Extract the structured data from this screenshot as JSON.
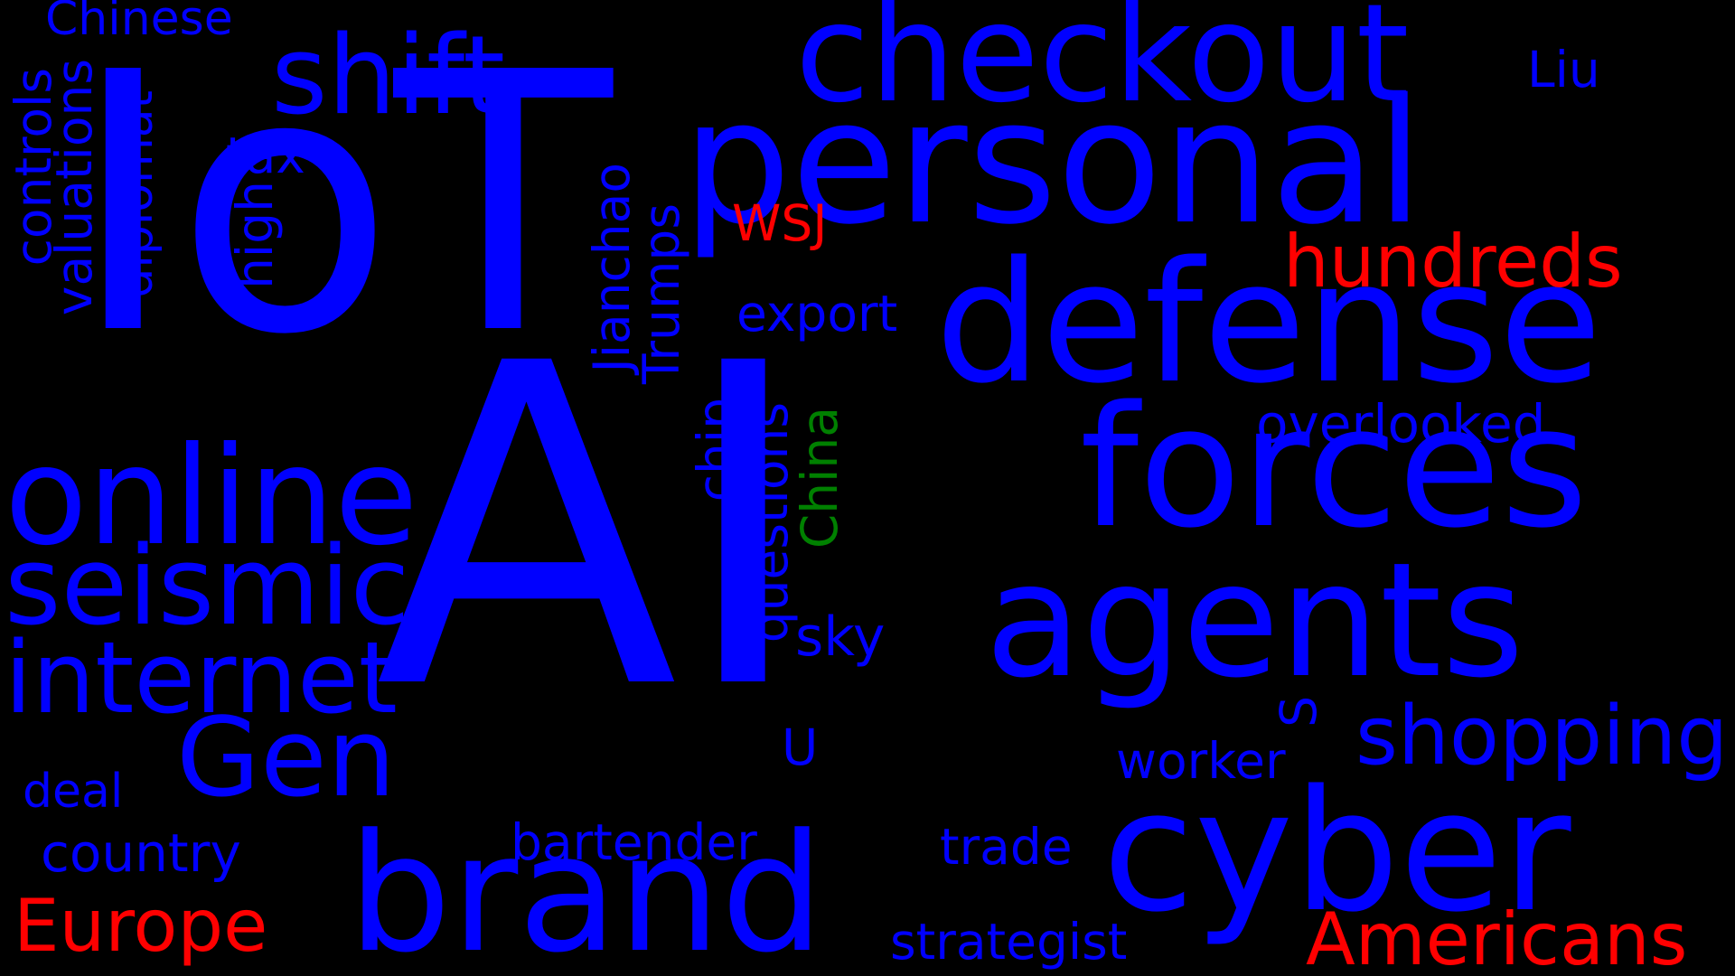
{
  "colors": {
    "background": "#000000",
    "primary_word": "#0000ff",
    "accent_red": "#ff0000",
    "accent_green": "#008000"
  },
  "words": {
    "ai": "AI",
    "iot": "IoT",
    "personal": "personal",
    "checkout": "checkout",
    "defense": "defense",
    "forces": "forces",
    "agents": "agents",
    "cyber": "cyber",
    "brand": "brand",
    "online": "online",
    "seismic": "seismic",
    "internet": "internet",
    "shift": "shift",
    "gen": "Gen",
    "shopping": "shopping",
    "hundreds": "hundreds",
    "americans": "Americans",
    "europe": "Europe",
    "overlooked": "overlooked",
    "export": "export",
    "country": "country",
    "bartender": "bartender",
    "strategist": "strategist",
    "trade": "trade",
    "worker": "worker",
    "sky": "sky",
    "deal": "deal",
    "chinese": "Chinese",
    "liu": "Liu",
    "wsj": "WSJ",
    "tax": "tax",
    "s": "S",
    "u": "U",
    "controls": "controls",
    "valuations": "valuations",
    "diplomat": "diplomat",
    "high": "high",
    "jianchao": "Jianchao",
    "trumps": "Trumps",
    "chip": "chip",
    "questions": "questions",
    "china": "China"
  }
}
